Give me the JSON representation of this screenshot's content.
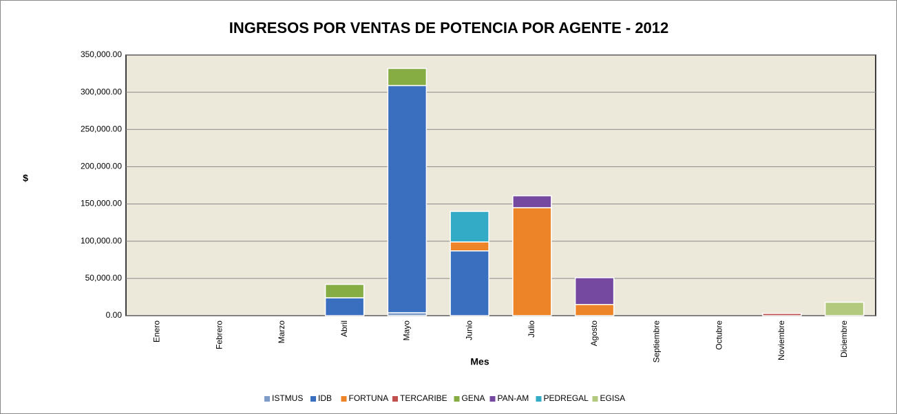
{
  "chart_data": {
    "type": "bar",
    "stacked": true,
    "title": "INGRESOS POR VENTAS DE POTENCIA POR AGENTE - 2012",
    "xlabel": "Mes",
    "ylabel": "$",
    "categories": [
      "Enero",
      "Febrero",
      "Marzo",
      "Abril",
      "Mayo",
      "Junio",
      "Julio",
      "Agosto",
      "Septiembre",
      "Octubre",
      "Noviembre",
      "Diciembre"
    ],
    "series": [
      {
        "name": "ISTMUS",
        "color": "#7f9cc8",
        "values": [
          0,
          0,
          0,
          0,
          4000,
          0,
          0,
          0,
          0,
          0,
          0,
          0
        ]
      },
      {
        "name": "IDB",
        "color": "#3a6fc0",
        "values": [
          0,
          0,
          0,
          24000,
          305000,
          87000,
          0,
          0,
          0,
          0,
          0,
          0
        ]
      },
      {
        "name": "FORTUNA",
        "color": "#ee8428",
        "values": [
          0,
          0,
          0,
          0,
          0,
          12000,
          145000,
          15000,
          0,
          0,
          0,
          0
        ]
      },
      {
        "name": "TERCARIBE",
        "color": "#c0504d",
        "values": [
          0,
          0,
          0,
          0,
          0,
          0,
          0,
          0,
          0,
          0,
          3000,
          0
        ]
      },
      {
        "name": "GENA",
        "color": "#86ac44",
        "values": [
          0,
          0,
          0,
          18000,
          23000,
          0,
          0,
          0,
          0,
          0,
          0,
          0
        ]
      },
      {
        "name": "PAN-AM",
        "color": "#7549a0",
        "values": [
          0,
          0,
          0,
          0,
          0,
          0,
          16000,
          36000,
          0,
          0,
          0,
          0
        ]
      },
      {
        "name": "PEDREGAL",
        "color": "#33aac6",
        "values": [
          0,
          0,
          0,
          0,
          0,
          41000,
          0,
          0,
          0,
          0,
          0,
          0
        ]
      },
      {
        "name": "EGISA",
        "color": "#b3ca7e",
        "values": [
          0,
          0,
          0,
          0,
          0,
          0,
          0,
          0,
          0,
          0,
          0,
          18000
        ]
      }
    ],
    "ylim": [
      0,
      350000
    ],
    "yticks": [
      {
        "value": 0,
        "label": "0.00"
      },
      {
        "value": 50000,
        "label": "50,000.00"
      },
      {
        "value": 100000,
        "label": "100,000.00"
      },
      {
        "value": 150000,
        "label": "150,000.00"
      },
      {
        "value": 200000,
        "label": "200,000.00"
      },
      {
        "value": 250000,
        "label": "250,000.00"
      },
      {
        "value": 300000,
        "label": "300,000.00"
      },
      {
        "value": 350000,
        "label": "350,000.00"
      }
    ],
    "grid": true,
    "legend": "bottom"
  }
}
